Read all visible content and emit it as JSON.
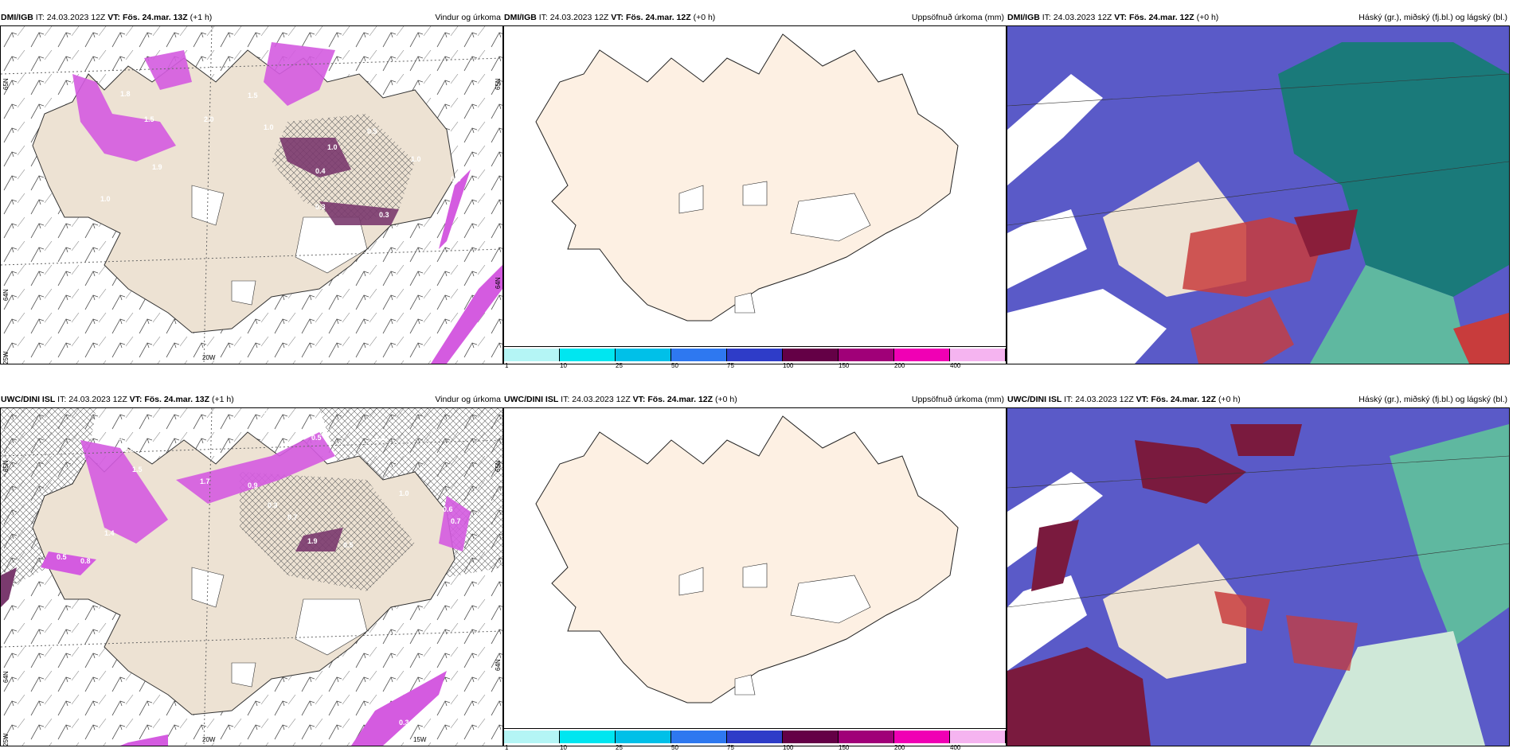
{
  "top_row": {
    "wind": {
      "model": "DMI/IGB",
      "it_label": "IT:",
      "it_value": "24.03.2023 12Z",
      "vt_label": "VT:",
      "vt_value": "Fös. 24.mar. 13Z",
      "lead": "(+1 h)",
      "title": "Vindur og úrkoma",
      "lat_labels": [
        "65N",
        "64N",
        "65N",
        "64N"
      ],
      "lon_labels": [
        "25W",
        "20W"
      ]
    },
    "precip": {
      "model": "DMI/IGB",
      "it_label": "IT:",
      "it_value": "24.03.2023 12Z",
      "vt_label": "VT:",
      "vt_value": "Fös. 24.mar. 12Z",
      "lead": "(+0 h)",
      "title": "Uppsöfnuð úrkoma (mm)"
    },
    "clouds": {
      "model": "DMI/IGB",
      "it_label": "IT:",
      "it_value": "24.03.2023 12Z",
      "vt_label": "VT:",
      "vt_value": "Fös. 24.mar. 12Z",
      "lead": "(+0 h)",
      "title": "Háský (gr.), miðský (fj.bl.) og lágský (bl.)"
    }
  },
  "bottom_row": {
    "wind": {
      "model": "UWC/DINI ISL",
      "it_label": "IT:",
      "it_value": "24.03.2023 12Z",
      "vt_label": "VT:",
      "vt_value": "Fös. 24.mar. 13Z",
      "lead": "(+1 h)",
      "title": "Vindur og úrkoma",
      "lat_labels": [
        "65N",
        "64N",
        "65N",
        "64N"
      ],
      "lon_labels": [
        "25W",
        "20W",
        "15W"
      ]
    },
    "precip": {
      "model": "UWC/DINI ISL",
      "it_label": "IT:",
      "it_value": "24.03.2023 12Z",
      "vt_label": "VT:",
      "vt_value": "Fös. 24.mar. 12Z",
      "lead": "(+0 h)",
      "title": "Uppsöfnuð úrkoma (mm)"
    },
    "clouds": {
      "model": "UWC/DINI ISL",
      "it_label": "IT:",
      "it_value": "24.03.2023 12Z",
      "vt_label": "VT:",
      "vt_value": "Fös. 24.mar. 12Z",
      "lead": "(+0 h)",
      "title": "Háský (gr.), miðský (fj.bl.) og lágský (bl.)"
    }
  },
  "precip_scale": {
    "ticks": [
      "1",
      "10",
      "25",
      "50",
      "75",
      "100",
      "150",
      "200",
      "400"
    ],
    "colors": [
      "#b4f5f5",
      "#00e6f0",
      "#00c0e8",
      "#2e78f0",
      "#2e3cc8",
      "#640046",
      "#a00078",
      "#f000b4",
      "#f5b4f0"
    ]
  },
  "wind_precip_labels_top": [
    "1.8",
    "1.5",
    "2.0",
    "1.5",
    "1.9",
    "1.0",
    "0.5",
    "0.4",
    "1.0",
    "0.5",
    "0.3",
    "1.0",
    "0.5",
    "1.0",
    "0.3"
  ],
  "wind_precip_labels_bottom": [
    "0.3",
    "1.0",
    "2.0",
    "1.5",
    "1.7",
    "0.9",
    "0.5",
    "1.0",
    "0.7",
    "0.3",
    "1.9",
    "0.5",
    "0.6",
    "1.0",
    "0.7",
    "0.5",
    "0.8",
    "1.4",
    "0.3"
  ],
  "colors": {
    "land": "#ede2d3",
    "land_plain": "#fdf0e3",
    "precip_magenta": "#d45be0",
    "precip_dark": "#7a3a6e",
    "cloud_low": "#5a5ac8",
    "cloud_mid": "#1a7a7a",
    "cloud_high_red": "#c83c3c"
  }
}
